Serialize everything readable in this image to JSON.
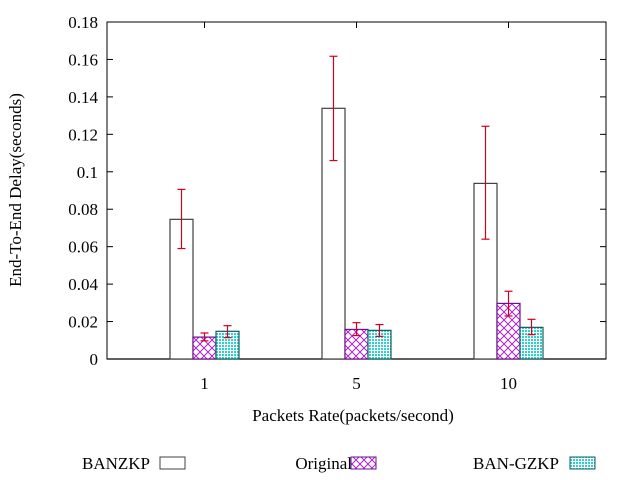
{
  "chart_data": {
    "type": "bar",
    "title": "",
    "xlabel": "Packets Rate(packets/second)",
    "ylabel": "End-To-End Delay(seconds)",
    "ylim": [
      0,
      0.18
    ],
    "yticks": [
      "0",
      "0.02",
      "0.04",
      "0.06",
      "0.08",
      "0.1",
      "0.12",
      "0.14",
      "0.16",
      "0.18"
    ],
    "categories": [
      "1",
      "5",
      "10"
    ],
    "legend_position": "bottom",
    "grid": false,
    "series": [
      {
        "name": "BANZKP",
        "pattern": "empty",
        "color": "#404040",
        "values": [
          0.0746,
          0.1339,
          0.0938
        ],
        "err_low": [
          0.059,
          0.106,
          0.064
        ],
        "err_high": [
          0.0906,
          0.1617,
          0.1243
        ]
      },
      {
        "name": "Original",
        "pattern": "crosshatch",
        "color": "#9400d3",
        "values": [
          0.0117,
          0.0158,
          0.0297
        ],
        "err_low": [
          0.0097,
          0.0125,
          0.023
        ],
        "err_high": [
          0.0139,
          0.0194,
          0.0362
        ]
      },
      {
        "name": "BAN-GZKP",
        "pattern": "dense-dots",
        "color": "#00b0b0",
        "values": [
          0.0148,
          0.0153,
          0.0169
        ],
        "err_low": [
          0.0114,
          0.0121,
          0.013
        ],
        "err_high": [
          0.0178,
          0.0184,
          0.0212
        ]
      }
    ],
    "error_bar_color": "#d00020"
  }
}
